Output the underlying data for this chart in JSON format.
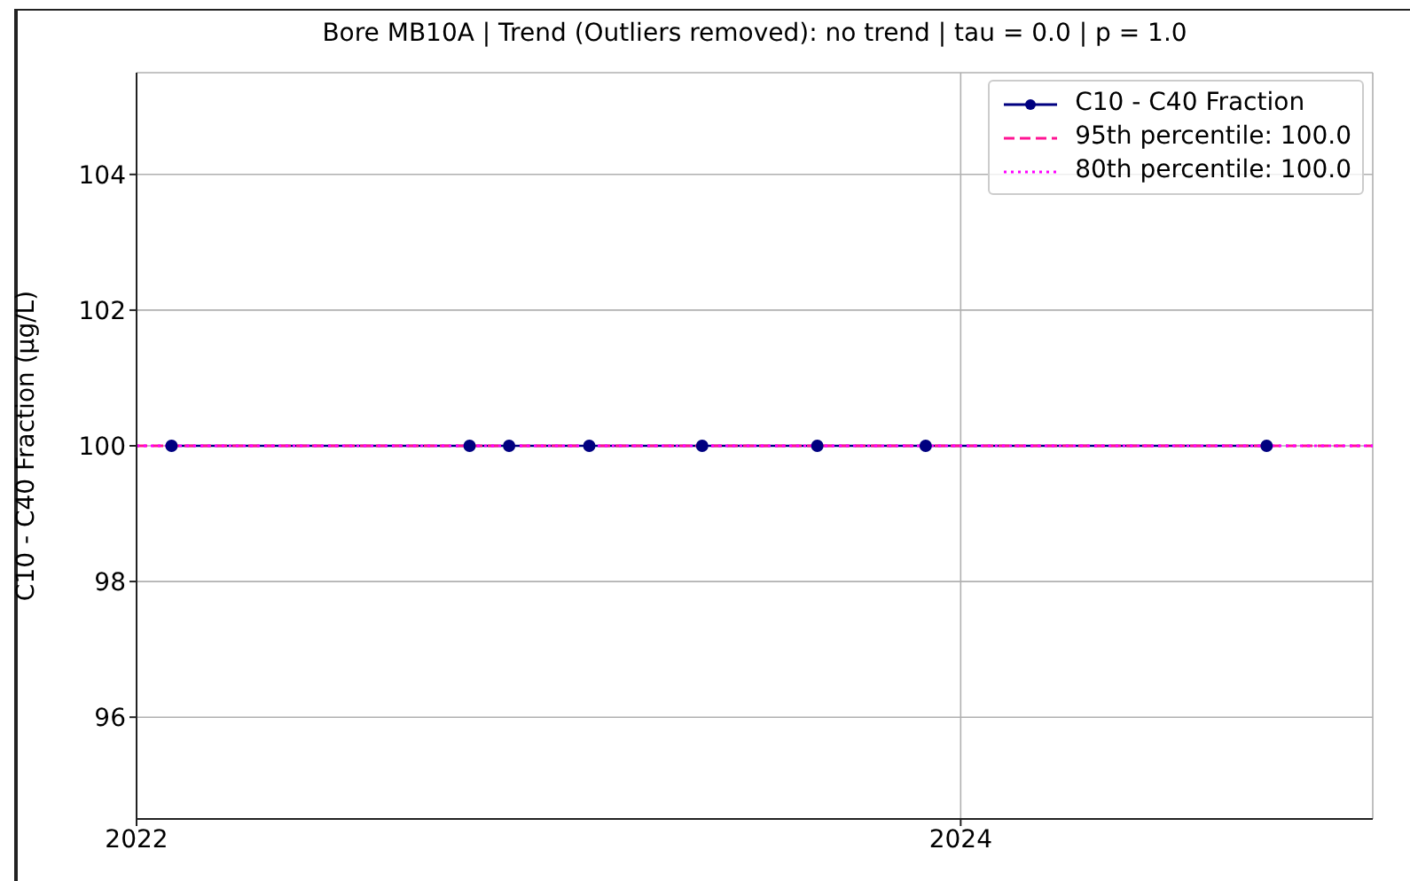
{
  "chart_data": {
    "type": "line",
    "title": "Bore MB10A | Trend (Outliers removed): no trend | tau = 0.0 | p = 1.0",
    "ylabel": "C10 - C40 Fraction (μg/L)",
    "x": [
      "2022-02-01",
      "2022-10-23",
      "2022-11-27",
      "2023-02-06",
      "2023-05-17",
      "2023-08-27",
      "2023-12-01",
      "2024-09-28"
    ],
    "series": [
      {
        "name": "C10 - C40 Fraction",
        "color": "#000080",
        "values": [
          100,
          100,
          100,
          100,
          100,
          100,
          100,
          100
        ]
      }
    ],
    "ref_lines": [
      {
        "axis": "y",
        "value": 100,
        "label": "95th percentile: 100.0",
        "color": "#ff1493",
        "line_style": "dashed"
      },
      {
        "axis": "y",
        "value": 100,
        "label": "80th percentile: 100.0",
        "color": "#ff00ff",
        "line_style": "dotted"
      }
    ],
    "xlim": [
      "2022-01-01",
      "2024-12-31"
    ],
    "xticks": [
      "2022",
      "2024"
    ],
    "ylim": [
      94.5,
      105.5
    ],
    "yticks": [
      96,
      98,
      100,
      102,
      104
    ],
    "grid": true,
    "legend": "top right",
    "marker": "circle",
    "line_style": "solid"
  }
}
